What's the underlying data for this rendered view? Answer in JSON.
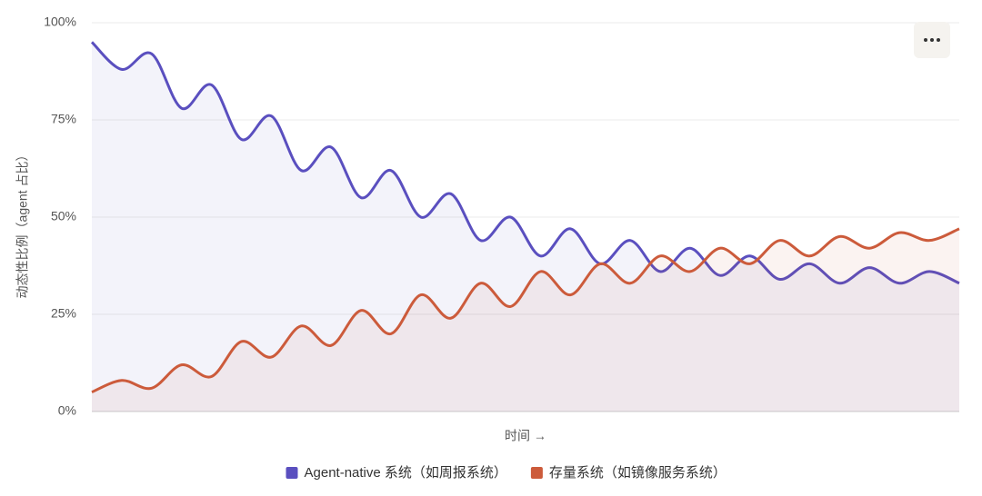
{
  "chart_data": {
    "type": "line",
    "y_label": "动态性比例（agent 占比）",
    "x_label": "时间 →",
    "categories": [
      null,
      null,
      null,
      null,
      null,
      null,
      null,
      null,
      null,
      null,
      null,
      null,
      null,
      null,
      null,
      null,
      null,
      null,
      null,
      null,
      null,
      null,
      null,
      null,
      null,
      null,
      null,
      null,
      null,
      null
    ],
    "series": [
      {
        "name": "Agent-native 系统（如周报系统）",
        "color": "#5a4fbf",
        "values": [
          95,
          88,
          92,
          78,
          84,
          70,
          76,
          62,
          68,
          55,
          62,
          50,
          56,
          44,
          50,
          40,
          47,
          38,
          44,
          36,
          42,
          35,
          40,
          34,
          38,
          33,
          37,
          33,
          36,
          33
        ]
      },
      {
        "name": "存量系统（如镜像服务系统）",
        "color": "#cc5b3b",
        "values": [
          5,
          8,
          6,
          12,
          9,
          18,
          14,
          22,
          17,
          26,
          20,
          30,
          24,
          33,
          27,
          36,
          30,
          38,
          33,
          40,
          36,
          42,
          38,
          44,
          40,
          45,
          42,
          46,
          44,
          47
        ]
      }
    ],
    "ylim": [
      0,
      100
    ],
    "yticks": [
      {
        "value": 0,
        "label": "0%"
      },
      {
        "value": 25,
        "label": "25%"
      },
      {
        "value": 50,
        "label": "50%"
      },
      {
        "value": 75,
        "label": "75%"
      },
      {
        "value": 100,
        "label": "100%"
      }
    ],
    "grid": true,
    "area": true,
    "legend": "bottom"
  }
}
